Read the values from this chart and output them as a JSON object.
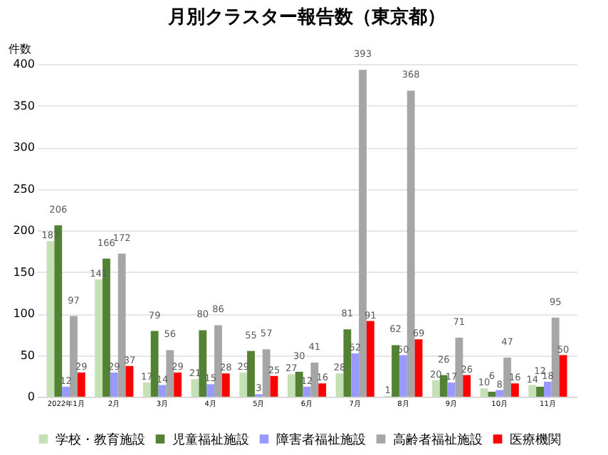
{
  "chart_data": {
    "type": "bar",
    "title": "月別クラスター報告数（東京都）",
    "ylabel": "件数",
    "categories": [
      "2022年1月",
      "2月",
      "3月",
      "4月",
      "5月",
      "6月",
      "7月",
      "8月",
      "9月",
      "10月",
      "11月"
    ],
    "series": [
      {
        "name": "学校・教育施設",
        "color": "#c5e0b4",
        "values": [
          187,
          141,
          17,
          21,
          29,
          27,
          28,
          1,
          20,
          10,
          14
        ]
      },
      {
        "name": "児童福祉施設",
        "color": "#548235",
        "values": [
          206,
          166,
          79,
          80,
          55,
          30,
          81,
          62,
          26,
          6,
          12
        ]
      },
      {
        "name": "障害者福祉施設",
        "color": "#9999ff",
        "values": [
          12,
          29,
          14,
          15,
          3,
          12,
          52,
          50,
          17,
          8,
          18
        ]
      },
      {
        "name": "高齢者福祉施設",
        "color": "#a6a6a6",
        "values": [
          97,
          172,
          56,
          86,
          57,
          41,
          393,
          368,
          71,
          47,
          95
        ]
      },
      {
        "name": "医療機関",
        "color": "#ff0000",
        "values": [
          29,
          37,
          29,
          28,
          25,
          16,
          91,
          69,
          26,
          16,
          50
        ]
      }
    ],
    "ylim": [
      0,
      400
    ],
    "yticks": [
      0,
      50,
      100,
      150,
      200,
      250,
      300,
      350,
      400
    ],
    "grid": "y",
    "legend": "bottom",
    "data_labels": true,
    "annotations": [
      "18"
    ]
  }
}
